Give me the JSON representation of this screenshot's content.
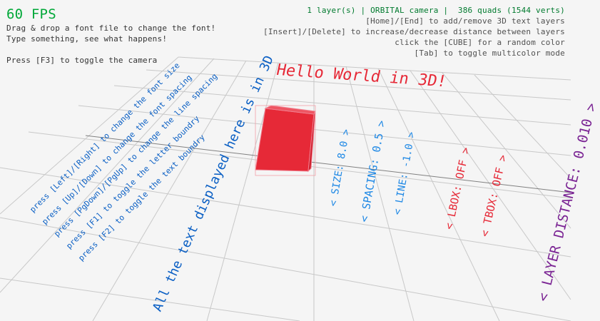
{
  "hud": {
    "fps": "60 FPS",
    "left_lines": [
      "Drag & drop a font file to change the font!",
      "Type something, see what happens!",
      "Press [F3] to toggle the camera"
    ],
    "status": "1 layer(s) | ORBITAL camera |  386 quads (1544 verts)",
    "right_lines": [
      "[Home]/[End] to add/remove 3D text layers",
      "[Insert]/[Delete] to increase/decrease distance between layers",
      "click the [CUBE] for a random color",
      "[Tab] to toggle multicolor mode"
    ]
  },
  "scene": {
    "title_text": "Hello World in 3D!",
    "big_text": "All the text displayed here is in 3D",
    "help_lines": [
      "press [Left]/[Right] to change the font size",
      "press [Up]/[Down] to change the font spacing",
      "press [PgDown]/[PgUp] to change the line spacing",
      "press [F1] to toggle the letter boundry",
      "press [F2] to toggle the text boundry"
    ],
    "options": {
      "size": "< SIZE: 8.0 >",
      "spacing": "< SPACING: 0.5 >",
      "line": "< LINE: -1.0 >",
      "lbox": "< LBOX: OFF >",
      "tbox": "< TBOX: OFF >",
      "layer_distance": "< LAYER DISTANCE: 0.010 >"
    },
    "cube_color": "#e62937"
  },
  "colors": {
    "fps": "#00a838",
    "status": "#007a2e",
    "text": "#505050",
    "blue": "#0a5fc4",
    "sky": "#1e88e5",
    "red": "#e62937",
    "purple": "#7b2594"
  }
}
